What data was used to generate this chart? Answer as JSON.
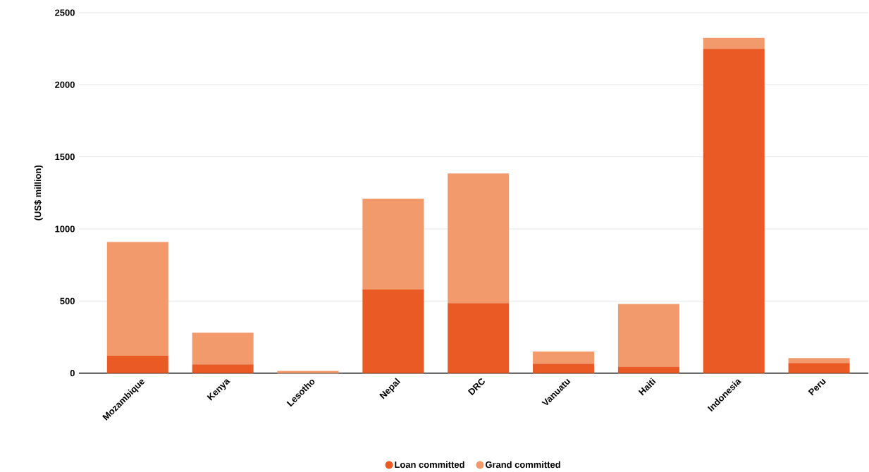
{
  "chart_data": {
    "type": "bar",
    "stacked": true,
    "ylabel": "(US$ million)",
    "categories": [
      "Mozambique",
      "Kenya",
      "Lesotho",
      "Nepal",
      "DRC",
      "Vanuatu",
      "Haiti",
      "Indonesia",
      "Peru"
    ],
    "series": [
      {
        "name": "Loan committed",
        "color": "#e95a24",
        "values": [
          120,
          60,
          0,
          580,
          485,
          65,
          45,
          2250,
          70
        ]
      },
      {
        "name": "Grand committed",
        "color": "#f39a6d",
        "values": [
          790,
          220,
          15,
          630,
          900,
          85,
          435,
          75,
          35
        ]
      }
    ],
    "ylim": [
      0,
      2500
    ],
    "yticks": [
      0,
      500,
      1000,
      1500,
      2000,
      2500
    ],
    "grid": "y",
    "legend": "bottom"
  }
}
